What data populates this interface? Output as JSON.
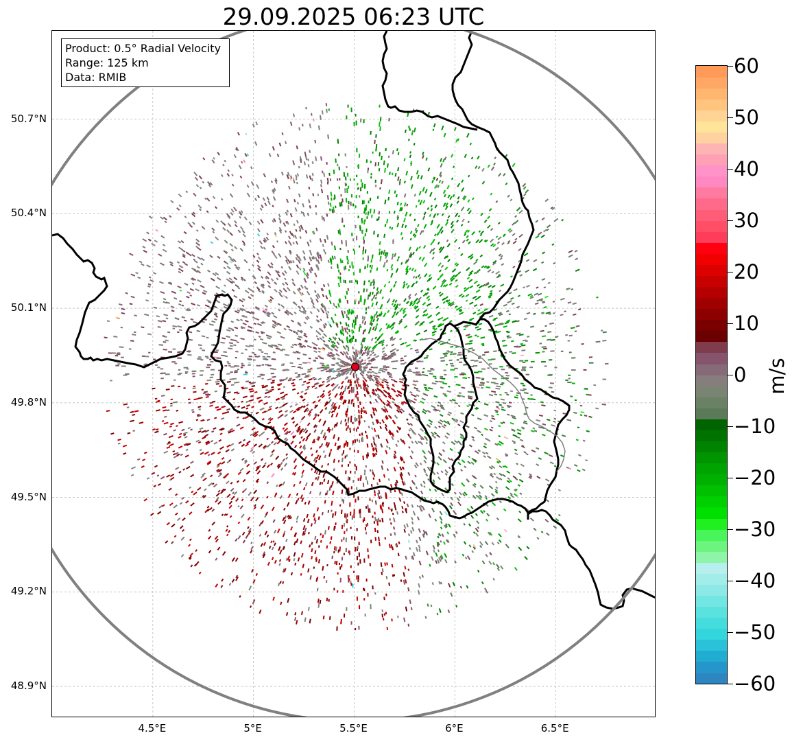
{
  "title": "29.09.2025 06:23 UTC",
  "info_box": {
    "product": "Product: 0.5° Radial Velocity",
    "range": "Range: 125 km",
    "data": "Data: RMIB"
  },
  "axes": {
    "lon_ticks": [
      "4.5°E",
      "5°E",
      "5.5°E",
      "6°E",
      "6.5°E"
    ],
    "lat_ticks": [
      "50.7°N",
      "50.4°N",
      "50.1°N",
      "49.8°N",
      "49.5°N",
      "49.2°N",
      "48.9°N"
    ],
    "lon_tick_values": [
      4.5,
      5.0,
      5.5,
      6.0,
      6.5
    ],
    "lat_tick_values": [
      50.7,
      50.4,
      50.1,
      49.8,
      49.5,
      49.2,
      48.9
    ],
    "extent": {
      "lon_min": 4.0,
      "lon_max": 7.0,
      "lat_min": 48.8,
      "lat_max": 50.98
    }
  },
  "radar": {
    "site_lon": 5.505,
    "site_lat": 49.914,
    "range_km": 125,
    "site_color": "#e0001b",
    "range_ring_color": "#808080"
  },
  "colorbar": {
    "unit": "m/s",
    "vmin": -60,
    "vmax": 60,
    "tick_labels": [
      "60",
      "50",
      "40",
      "30",
      "20",
      "10",
      "0",
      "−10",
      "−20",
      "−30",
      "−40",
      "−50",
      "−60"
    ],
    "tick_values": [
      60,
      50,
      40,
      30,
      20,
      10,
      0,
      -10,
      -20,
      -30,
      -40,
      -50,
      -60
    ],
    "colors": [
      "#2e86c1",
      "#2596c9",
      "#21acd2",
      "#29c2d8",
      "#32d6dc",
      "#44dcdc",
      "#5ae2de",
      "#72e6e2",
      "#8ce9e6",
      "#a2ecea",
      "#b6efee",
      "#8ef5a8",
      "#6cf57e",
      "#48f55a",
      "#20f020",
      "#00e000",
      "#00d000",
      "#00c000",
      "#00b000",
      "#00a400",
      "#009400",
      "#008400",
      "#007200",
      "#006400",
      "#5a7a58",
      "#6b8166",
      "#7a8472",
      "#857e7c",
      "#876a78",
      "#86546c",
      "#7e3c4c",
      "#6a0000",
      "#7a0000",
      "#8c0000",
      "#a00000",
      "#b40000",
      "#c80000",
      "#dc0000",
      "#f00000",
      "#ff0010",
      "#ff3c5a",
      "#ff4e66",
      "#ff5c78",
      "#ff6a8a",
      "#ff7aa0",
      "#ff88c2",
      "#ff92c8",
      "#ffa0b4",
      "#ffb4b4",
      "#ffd2a0",
      "#ffe49a",
      "#ffd494",
      "#ffc47e",
      "#ffb66e",
      "#ffa866",
      "#ff9a58"
    ]
  }
}
